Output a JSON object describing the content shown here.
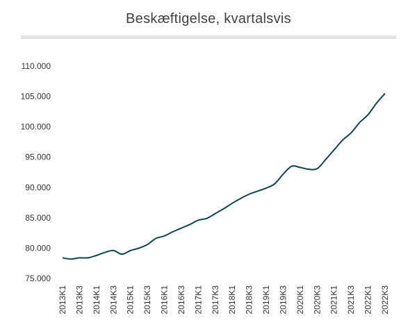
{
  "chart_data": {
    "type": "line",
    "title": "Beskæftigelse, kvartalsvis",
    "xlabel": "",
    "ylabel": "",
    "ylim": [
      75000,
      110000
    ],
    "yticks": [
      75000,
      80000,
      85000,
      90000,
      95000,
      100000,
      105000,
      110000
    ],
    "ytick_labels": [
      "75.000",
      "80.000",
      "85.000",
      "90.000",
      "95.000",
      "100.000",
      "105.000",
      "110.000"
    ],
    "x": [
      "2013K1",
      "2013K2",
      "2013K3",
      "2013K4",
      "2014K1",
      "2014K2",
      "2014K3",
      "2014K4",
      "2015K1",
      "2015K2",
      "2015K3",
      "2015K4",
      "2016K1",
      "2016K2",
      "2016K3",
      "2016K4",
      "2017K1",
      "2017K2",
      "2017K3",
      "2017K4",
      "2018K1",
      "2018K2",
      "2018K3",
      "2018K4",
      "2019K1",
      "2019K2",
      "2019K3",
      "2019K4",
      "2020K1",
      "2020K2",
      "2020K3",
      "2020K4",
      "2021K1",
      "2021K2",
      "2021K3",
      "2021K4",
      "2022K1",
      "2022K2",
      "2022K3"
    ],
    "xtick_labels": [
      "2013K1",
      "2013K3",
      "2014K1",
      "2014K3",
      "2015K1",
      "2015K3",
      "2016K1",
      "2016K3",
      "2017K1",
      "2017K3",
      "2018K1",
      "2018K3",
      "2019K1",
      "2019K3",
      "2020K1",
      "2020K3",
      "2021K1",
      "2021K3",
      "2022K1",
      "2022K3"
    ],
    "series": [
      {
        "values": [
          78400,
          78200,
          78400,
          78400,
          78800,
          79300,
          79600,
          79000,
          79600,
          80000,
          80600,
          81600,
          82000,
          82700,
          83300,
          83900,
          84600,
          84900,
          85700,
          86500,
          87400,
          88200,
          88900,
          89400,
          89900,
          90600,
          92200,
          93500,
          93300,
          93000,
          93100,
          94600,
          96200,
          97800,
          99000,
          100700,
          102000,
          103900,
          105500
        ],
        "color": "#0d4452"
      }
    ],
    "grid": false,
    "legend": "none"
  }
}
